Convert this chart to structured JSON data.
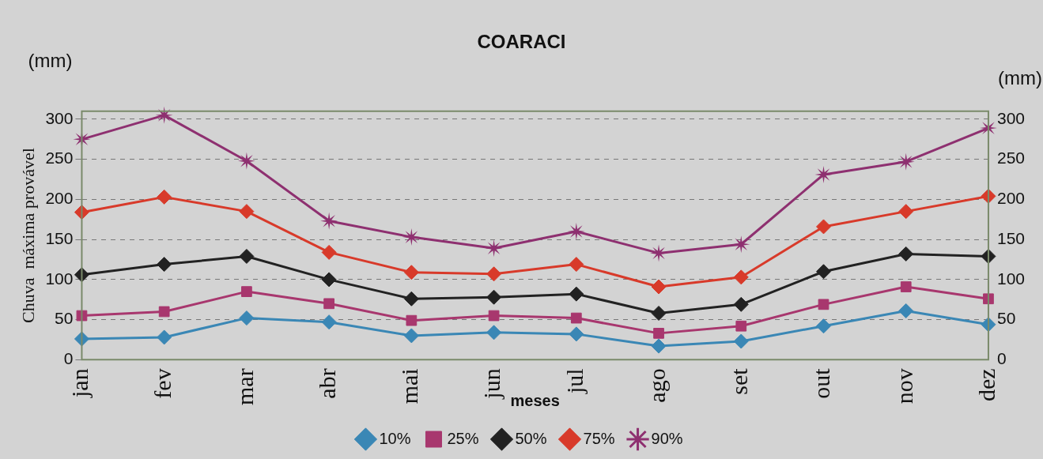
{
  "chart_data": {
    "type": "line",
    "title": "COARACI",
    "xlabel": "meses",
    "ylabel": "Chuva  máxima provável",
    "annotations": [
      "(mm)",
      "(mm)"
    ],
    "categories": [
      "jan",
      "fev",
      "mar",
      "abr",
      "mai",
      "jun",
      "jul",
      "ago",
      "set",
      "out",
      "nov",
      "dez"
    ],
    "series": [
      {
        "name": "10%",
        "color": "#3a87b5",
        "marker": "diamond",
        "values": [
          26,
          28,
          52,
          47,
          30,
          34,
          32,
          17,
          23,
          42,
          61,
          44
        ]
      },
      {
        "name": "25%",
        "color": "#a8376e",
        "marker": "square",
        "values": [
          55,
          60,
          85,
          70,
          49,
          55,
          52,
          33,
          42,
          69,
          91,
          76
        ]
      },
      {
        "name": "50%",
        "color": "#222222",
        "marker": "diamond",
        "values": [
          106,
          119,
          129,
          100,
          76,
          78,
          82,
          58,
          69,
          110,
          132,
          129
        ]
      },
      {
        "name": "75%",
        "color": "#d83a2a",
        "marker": "diamond",
        "values": [
          184,
          203,
          185,
          134,
          109,
          107,
          119,
          91,
          103,
          166,
          185,
          204
        ]
      },
      {
        "name": "90%",
        "color": "#8e3070",
        "marker": "star",
        "values": [
          275,
          305,
          248,
          173,
          153,
          139,
          160,
          133,
          144,
          231,
          247,
          289
        ]
      }
    ],
    "ylim": [
      0,
      310
    ],
    "yticks": [
      0,
      50,
      100,
      150,
      200,
      250,
      300
    ],
    "y2lim": [
      0,
      310
    ],
    "y2ticks": [
      0,
      50,
      100,
      150,
      200,
      250,
      300
    ],
    "grid": "y",
    "legend": "bottom",
    "line_style": "solid"
  }
}
